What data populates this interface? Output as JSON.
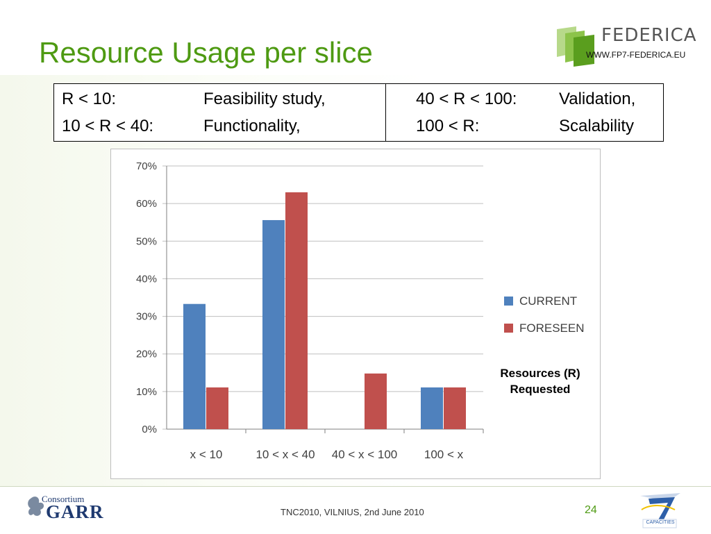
{
  "slide": {
    "title": "Resource Usage per slice",
    "page_number": "24",
    "footer": "TNC2010, VILNIUS, 2nd June 2010"
  },
  "logos": {
    "federica_name": "FEDERICA",
    "federica_url": "WWW.FP7-FEDERICA.EU",
    "garr_line1": "Consortium",
    "garr_line2": "GARR",
    "fp7_caption": "CAPACITIES"
  },
  "ranges": {
    "left": [
      {
        "range": "R < 10:",
        "meaning": "Feasibility study,"
      },
      {
        "range": "10 < R < 40:",
        "meaning": "Functionality,"
      }
    ],
    "right": [
      {
        "range": "40 < R < 100:",
        "meaning": "Validation,"
      },
      {
        "range": "100 < R:",
        "meaning": "Scalability"
      }
    ]
  },
  "axis_note": {
    "line1": "Resources (R)",
    "line2": "Requested"
  },
  "colors": {
    "title": "#4e9a12",
    "current": "#4f81bd",
    "foreseen": "#c0504d",
    "grid": "#bfbfbf"
  },
  "chart_data": {
    "type": "bar",
    "categories": [
      "x < 10",
      "10 < x < 40",
      "40 < x < 100",
      "100 < x"
    ],
    "series": [
      {
        "name": "CURRENT",
        "values": [
          33.3,
          55.6,
          0,
          11.1
        ]
      },
      {
        "name": "FORESEEN",
        "values": [
          11.1,
          63.0,
          14.8,
          11.1
        ]
      }
    ],
    "yticks": [
      "0%",
      "10%",
      "20%",
      "30%",
      "40%",
      "50%",
      "60%",
      "70%"
    ],
    "ylim": [
      0,
      70
    ],
    "grid": true,
    "legend": "right"
  }
}
